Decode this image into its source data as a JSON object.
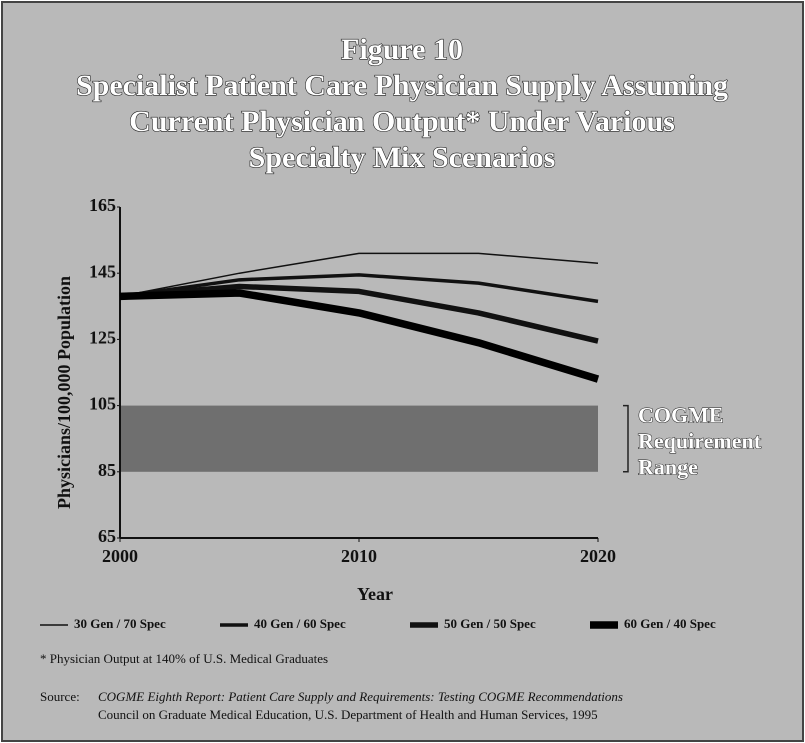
{
  "chart_data": {
    "type": "line",
    "title": [
      "Figure 10",
      "Specialist Patient Care Physician Supply Assuming",
      "Current Physician Output* Under Various",
      "Specialty Mix Scenarios"
    ],
    "xlabel": "Year",
    "ylabel": "Physicians/100,000 Population",
    "x": [
      2000,
      2005,
      2010,
      2015,
      2020
    ],
    "xlim": [
      2000,
      2020
    ],
    "xticks": [
      2000,
      2010,
      2020
    ],
    "ylim": [
      65,
      165
    ],
    "yticks": [
      65,
      85,
      105,
      125,
      145,
      165
    ],
    "series": [
      {
        "name": "30 Gen / 70 Spec",
        "color": "#111111",
        "values": [
          138,
          145,
          151,
          151,
          148
        ]
      },
      {
        "name": "40 Gen / 60 Spec",
        "color": "#111111",
        "values": [
          138,
          143,
          144.5,
          142,
          136.5
        ]
      },
      {
        "name": "50 Gen / 50 Spec",
        "color": "#111111",
        "values": [
          138,
          141,
          139.5,
          133,
          124.5
        ]
      },
      {
        "name": "60 Gen / 40 Spec",
        "color": "#000000",
        "values": [
          138,
          139,
          133,
          124,
          113
        ]
      }
    ],
    "requirement_range": {
      "low": 85,
      "high": 105,
      "color": "#6f6f6f",
      "label": [
        "COGME",
        "Requirement",
        "Range"
      ]
    },
    "footnote": "* Physician Output at 140% of U.S. Medical Graduates",
    "source": {
      "label": "Source:",
      "lines": [
        "COGME Eighth Report: Patient Care Supply and Requirements: Testing COGME Recommendations",
        "Council on Graduate Medical Education, U.S. Department of Health and Human Services, 1995"
      ]
    }
  }
}
